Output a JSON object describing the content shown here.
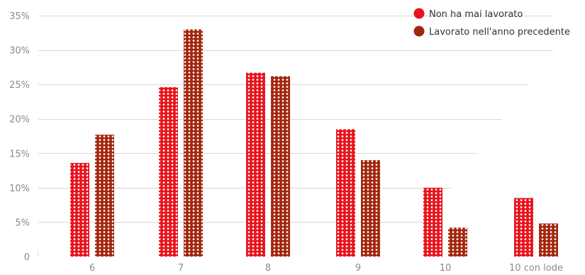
{
  "chart_data": {
    "type": "bar",
    "categories": [
      "6",
      "7",
      "8",
      "9",
      "10",
      "10 con lode"
    ],
    "series": [
      {
        "name": "Non ha mai lavorato",
        "color": "#e8141c",
        "values": [
          13.6,
          24.6,
          26.7,
          18.5,
          10.0,
          8.5
        ]
      },
      {
        "name": "Lavorato nell'anno precedente",
        "color": "#a3260f",
        "values": [
          17.7,
          33.0,
          26.2,
          14.0,
          4.2,
          4.8
        ]
      }
    ],
    "ylim": [
      0,
      35
    ],
    "yticks": [
      {
        "value": 0,
        "label": "0"
      },
      {
        "value": 5,
        "label": "5%"
      },
      {
        "value": 10,
        "label": "10%"
      },
      {
        "value": 15,
        "label": "15%"
      },
      {
        "value": 20,
        "label": "20%"
      },
      {
        "value": 25,
        "label": "25%"
      },
      {
        "value": 30,
        "label": "30%"
      },
      {
        "value": 35,
        "label": "35%"
      }
    ],
    "grid": true,
    "legend_position": "top-right",
    "bar_texture": "white dotted pattern"
  }
}
